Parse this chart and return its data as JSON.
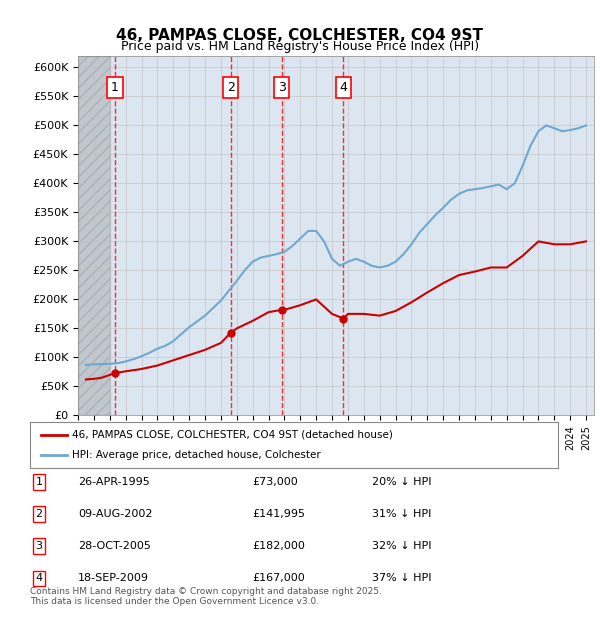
{
  "title": "46, PAMPAS CLOSE, COLCHESTER, CO4 9ST",
  "subtitle": "Price paid vs. HM Land Registry's House Price Index (HPI)",
  "ylabel_ticks": [
    "£0",
    "£50K",
    "£100K",
    "£150K",
    "£200K",
    "£250K",
    "£300K",
    "£350K",
    "£400K",
    "£450K",
    "£500K",
    "£550K",
    "£600K"
  ],
  "ylim": [
    0,
    620000
  ],
  "ytick_values": [
    0,
    50000,
    100000,
    150000,
    200000,
    250000,
    300000,
    350000,
    400000,
    450000,
    500000,
    550000,
    600000
  ],
  "sale_dates": [
    "1995-04-26",
    "2002-08-09",
    "2005-10-28",
    "2009-09-18"
  ],
  "sale_prices": [
    73000,
    141995,
    182000,
    167000
  ],
  "sale_labels": [
    "1",
    "2",
    "3",
    "4"
  ],
  "hpi_color": "#6fa8d0",
  "price_color": "#cc0000",
  "legend_price_label": "46, PAMPAS CLOSE, COLCHESTER, CO4 9ST (detached house)",
  "legend_hpi_label": "HPI: Average price, detached house, Colchester",
  "table_rows": [
    [
      "1",
      "26-APR-1995",
      "£73,000",
      "20% ↓ HPI"
    ],
    [
      "2",
      "09-AUG-2002",
      "£141,995",
      "31% ↓ HPI"
    ],
    [
      "3",
      "28-OCT-2005",
      "£182,000",
      "32% ↓ HPI"
    ],
    [
      "4",
      "18-SEP-2009",
      "£167,000",
      "37% ↓ HPI"
    ]
  ],
  "footnote": "Contains HM Land Registry data © Crown copyright and database right 2025.\nThis data is licensed under the Open Government Licence v3.0.",
  "background_hatch_color": "#e8e8f0",
  "grid_color": "#c0c0c0",
  "plot_bg_color": "#dce6f0"
}
